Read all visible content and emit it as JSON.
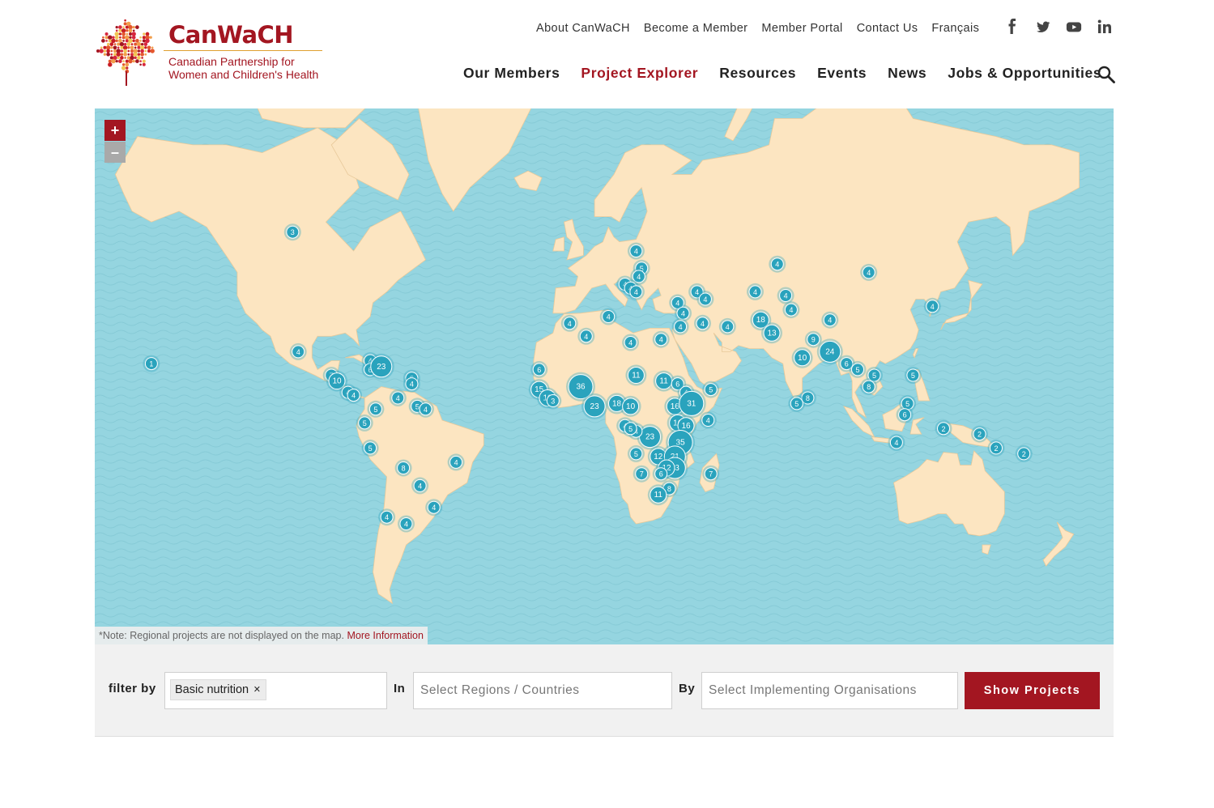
{
  "brand": {
    "name": "CanWaCH",
    "subtitle_line1": "Canadian Partnership for",
    "subtitle_line2": "Women and Children's Health"
  },
  "top_nav": [
    "About CanWaCH",
    "Become a Member",
    "Member Portal",
    "Contact Us",
    "Français"
  ],
  "social_icons": [
    "facebook-icon",
    "twitter-icon",
    "youtube-icon",
    "linkedin-icon"
  ],
  "main_nav": [
    {
      "label": "Our Members",
      "active": false
    },
    {
      "label": "Project Explorer",
      "active": true
    },
    {
      "label": "Resources",
      "active": false
    },
    {
      "label": "Events",
      "active": false
    },
    {
      "label": "News",
      "active": false
    },
    {
      "label": "Jobs & Opportunities",
      "active": false
    }
  ],
  "map": {
    "zoom_in": "+",
    "zoom_out": "–",
    "note": "*Note: Regional projects are not displayed on the map.",
    "note_link": "More Information",
    "colors": {
      "water": "#95d5e0",
      "land": "#fce5c1",
      "cluster": "#2aa3bd",
      "accent": "#a31621"
    },
    "clusters": [
      {
        "lon": -104,
        "lat": 56,
        "count": "3"
      },
      {
        "lon": -155,
        "lat": 20,
        "count": "1"
      },
      {
        "lon": -102,
        "lat": 24,
        "count": "4"
      },
      {
        "lon": -90,
        "lat": 16,
        "count": "7"
      },
      {
        "lon": -88,
        "lat": 14,
        "count": "10"
      },
      {
        "lon": -84,
        "lat": 10,
        "count": "4"
      },
      {
        "lon": -82,
        "lat": 9,
        "count": "4"
      },
      {
        "lon": -76,
        "lat": 21,
        "count": "4"
      },
      {
        "lon": -76,
        "lat": 18,
        "count": "6"
      },
      {
        "lon": -72,
        "lat": 19,
        "count": "23"
      },
      {
        "lon": -61,
        "lat": 15,
        "count": "6"
      },
      {
        "lon": -61,
        "lat": 13,
        "count": "4"
      },
      {
        "lon": -66,
        "lat": 8,
        "count": "4"
      },
      {
        "lon": -74,
        "lat": 4,
        "count": "5"
      },
      {
        "lon": -59,
        "lat": 5,
        "count": "5"
      },
      {
        "lon": -56,
        "lat": 4,
        "count": "4"
      },
      {
        "lon": -78,
        "lat": -1,
        "count": "5"
      },
      {
        "lon": -76,
        "lat": -10,
        "count": "5"
      },
      {
        "lon": -64,
        "lat": -17,
        "count": "8"
      },
      {
        "lon": -45,
        "lat": -15,
        "count": "4"
      },
      {
        "lon": -58,
        "lat": -23,
        "count": "4"
      },
      {
        "lon": -53,
        "lat": -30,
        "count": "4"
      },
      {
        "lon": -70,
        "lat": -33,
        "count": "4"
      },
      {
        "lon": -63,
        "lat": -35,
        "count": "4"
      },
      {
        "lon": 20,
        "lat": 52,
        "count": "4"
      },
      {
        "lon": 22,
        "lat": 48,
        "count": "5"
      },
      {
        "lon": 21,
        "lat": 46,
        "count": "4"
      },
      {
        "lon": 16,
        "lat": 44,
        "count": "4"
      },
      {
        "lon": 18,
        "lat": 43,
        "count": "4"
      },
      {
        "lon": 20,
        "lat": 42,
        "count": "4"
      },
      {
        "lon": 42,
        "lat": 42,
        "count": "4"
      },
      {
        "lon": 45,
        "lat": 40,
        "count": "4"
      },
      {
        "lon": 35,
        "lat": 39,
        "count": "4"
      },
      {
        "lon": 37,
        "lat": 36,
        "count": "4"
      },
      {
        "lon": 36,
        "lat": 32,
        "count": "4"
      },
      {
        "lon": 44,
        "lat": 33,
        "count": "4"
      },
      {
        "lon": 53,
        "lat": 32,
        "count": "4"
      },
      {
        "lon": 65,
        "lat": 34,
        "count": "18"
      },
      {
        "lon": 69,
        "lat": 30,
        "count": "13"
      },
      {
        "lon": 63,
        "lat": 42,
        "count": "4"
      },
      {
        "lon": 74,
        "lat": 41,
        "count": "4"
      },
      {
        "lon": 76,
        "lat": 37,
        "count": "4"
      },
      {
        "lon": 71,
        "lat": 49,
        "count": "4"
      },
      {
        "lon": 104,
        "lat": 47,
        "count": "4"
      },
      {
        "lon": 90,
        "lat": 34,
        "count": "4"
      },
      {
        "lon": 127,
        "lat": 38,
        "count": "4"
      },
      {
        "lon": 80,
        "lat": 22,
        "count": "10"
      },
      {
        "lon": 84,
        "lat": 28,
        "count": "9"
      },
      {
        "lon": 90,
        "lat": 24,
        "count": "24"
      },
      {
        "lon": 96,
        "lat": 20,
        "count": "6"
      },
      {
        "lon": 100,
        "lat": 18,
        "count": "5"
      },
      {
        "lon": 106,
        "lat": 16,
        "count": "5"
      },
      {
        "lon": 104,
        "lat": 12,
        "count": "8"
      },
      {
        "lon": 120,
        "lat": 16,
        "count": "5"
      },
      {
        "lon": 82,
        "lat": 8,
        "count": "8"
      },
      {
        "lon": 78,
        "lat": 6,
        "count": "5"
      },
      {
        "lon": 118,
        "lat": 6,
        "count": "5"
      },
      {
        "lon": 117,
        "lat": 2,
        "count": "6"
      },
      {
        "lon": 114,
        "lat": -8,
        "count": "4"
      },
      {
        "lon": 131,
        "lat": -3,
        "count": "2"
      },
      {
        "lon": 144,
        "lat": -5,
        "count": "2"
      },
      {
        "lon": 150,
        "lat": -10,
        "count": "2"
      },
      {
        "lon": 160,
        "lat": -12,
        "count": "2"
      },
      {
        "lon": -4,
        "lat": 33,
        "count": "4"
      },
      {
        "lon": 10,
        "lat": 35,
        "count": "4"
      },
      {
        "lon": 2,
        "lat": 29,
        "count": "4"
      },
      {
        "lon": 18,
        "lat": 27,
        "count": "4"
      },
      {
        "lon": 29,
        "lat": 28,
        "count": "4"
      },
      {
        "lon": -15,
        "lat": 18,
        "count": "6"
      },
      {
        "lon": -15,
        "lat": 11,
        "count": "15"
      },
      {
        "lon": -12,
        "lat": 8,
        "count": "10"
      },
      {
        "lon": -10,
        "lat": 7,
        "count": "3"
      },
      {
        "lon": 0,
        "lat": 12,
        "count": "36"
      },
      {
        "lon": 5,
        "lat": 5,
        "count": "23"
      },
      {
        "lon": 13,
        "lat": 6,
        "count": "18"
      },
      {
        "lon": 18,
        "lat": 5,
        "count": "10"
      },
      {
        "lon": 20,
        "lat": 16,
        "count": "11"
      },
      {
        "lon": 30,
        "lat": 14,
        "count": "11"
      },
      {
        "lon": 35,
        "lat": 13,
        "count": "6"
      },
      {
        "lon": 38,
        "lat": 10,
        "count": "4"
      },
      {
        "lon": 47,
        "lat": 11,
        "count": "5"
      },
      {
        "lon": 34,
        "lat": 5,
        "count": "16"
      },
      {
        "lon": 40,
        "lat": 6,
        "count": "31"
      },
      {
        "lon": 46,
        "lat": 0,
        "count": "4"
      },
      {
        "lon": 35,
        "lat": -1,
        "count": "16"
      },
      {
        "lon": 38,
        "lat": -2,
        "count": "16"
      },
      {
        "lon": 36,
        "lat": -8,
        "count": "35"
      },
      {
        "lon": 25,
        "lat": -6,
        "count": "23"
      },
      {
        "lon": 20,
        "lat": -4,
        "count": "4"
      },
      {
        "lon": 16,
        "lat": -2,
        "count": "4"
      },
      {
        "lon": 18,
        "lat": -3,
        "count": "5"
      },
      {
        "lon": 20,
        "lat": -12,
        "count": "5"
      },
      {
        "lon": 28,
        "lat": -13,
        "count": "12"
      },
      {
        "lon": 34,
        "lat": -13,
        "count": "21"
      },
      {
        "lon": 34,
        "lat": -17,
        "count": "23"
      },
      {
        "lon": 31,
        "lat": -17,
        "count": "12"
      },
      {
        "lon": 29,
        "lat": -19,
        "count": "6"
      },
      {
        "lon": 22,
        "lat": -19,
        "count": "7"
      },
      {
        "lon": 47,
        "lat": -19,
        "count": "7"
      },
      {
        "lon": 32,
        "lat": -24,
        "count": "8"
      },
      {
        "lon": 28,
        "lat": -26,
        "count": "11"
      }
    ]
  },
  "filters": {
    "filter_by_label": "filter by",
    "topic_tag": "Basic nutrition",
    "tag_remove": "×",
    "in_label": "In",
    "region_placeholder": "Select Regions / Countries",
    "by_label": "By",
    "org_placeholder": "Select Implementing Organisations",
    "submit": "Show Projects"
  }
}
